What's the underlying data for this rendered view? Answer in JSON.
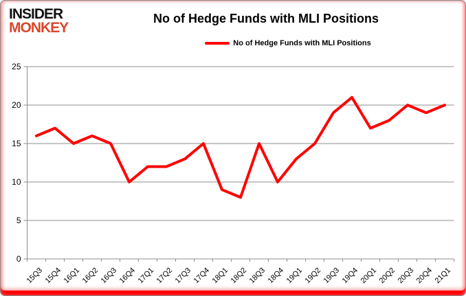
{
  "logo": {
    "line1": "INSIDER",
    "line2": "MONKEY"
  },
  "header": {
    "title": "No of Hedge Funds with MLI Positions"
  },
  "legend": {
    "label": "No of Hedge Funds with MLI Positions"
  },
  "colors": {
    "series_line": "#ff0000",
    "logo_black": "#111111",
    "logo_red": "#d9472b",
    "gridline": "#8c8c8c",
    "axis_text": "#000000",
    "border_red": "#ff0000"
  },
  "chart_data": {
    "type": "line",
    "title": "No of Hedge Funds with MLI Positions",
    "categories": [
      "15Q3",
      "15Q4",
      "16Q1",
      "16Q2",
      "16Q3",
      "16Q4",
      "17Q1",
      "17Q2",
      "17Q3",
      "17Q4",
      "18Q1",
      "18Q2",
      "18Q3",
      "18Q4",
      "19Q1",
      "19Q2",
      "19Q3",
      "19Q4",
      "20Q1",
      "20Q2",
      "20Q3",
      "20Q4",
      "21Q1"
    ],
    "series": [
      {
        "name": "No of Hedge Funds with MLI Positions",
        "color": "#ff0000",
        "values": [
          16,
          17,
          15,
          16,
          15,
          10,
          12,
          12,
          13,
          15,
          9,
          8,
          15,
          10,
          13,
          15,
          19,
          21,
          17,
          18,
          20,
          19,
          20
        ]
      }
    ],
    "xlabel": "",
    "ylabel": "",
    "ylim": [
      0,
      25
    ],
    "yticks": [
      0,
      5,
      10,
      15,
      20,
      25
    ],
    "grid": true,
    "legend_position": "top-center"
  }
}
